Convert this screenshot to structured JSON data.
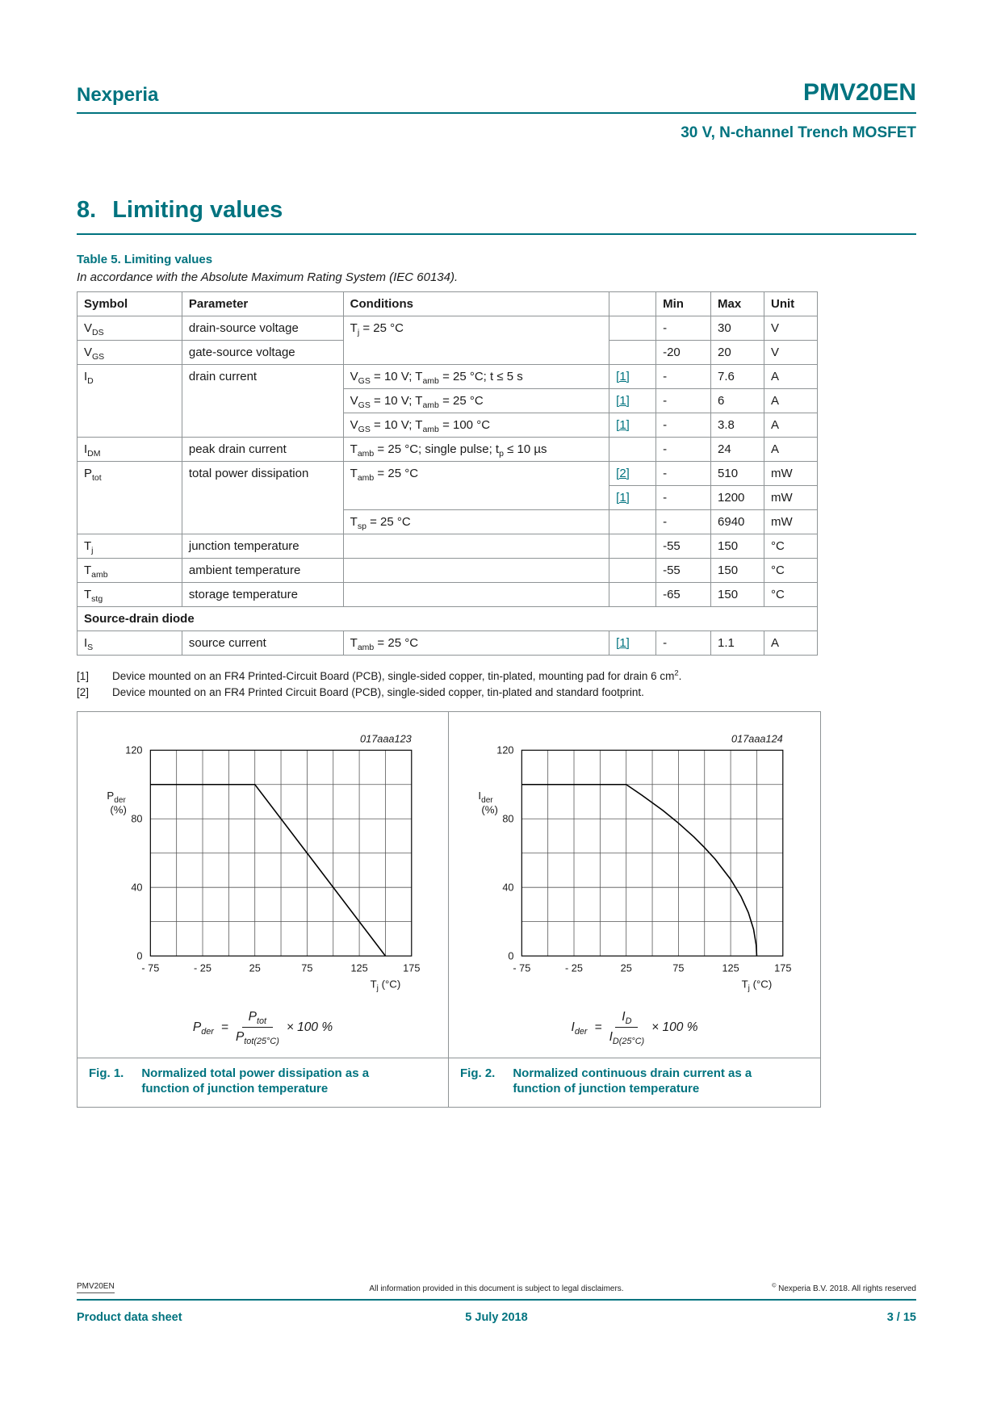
{
  "page": {
    "brand": "Nexperia",
    "part": "PMV20EN",
    "subtitle": "30 V, N-channel Trench MOSFET"
  },
  "section": {
    "number": "8.",
    "title": "Limiting values"
  },
  "table5": {
    "caption": "Table 5. Limiting values",
    "note": "In accordance with the Absolute Maximum Rating System (IEC 60134).",
    "headers": {
      "symbol": "Symbol",
      "parameter": "Parameter",
      "conditions": "Conditions",
      "ref": "",
      "min": "Min",
      "max": "Max",
      "unit": "Unit"
    },
    "section_row": "Source-drain diode",
    "rows": [
      {
        "symbol": "V~DS~",
        "parameter": "drain-source voltage",
        "conditions": "T~j~ = 25 °C",
        "ref": "",
        "min": "-",
        "max": "30",
        "unit": "V"
      },
      {
        "symbol": "V~GS~",
        "parameter": "gate-source voltage",
        "ref": "",
        "min": "-20",
        "max": "20",
        "unit": "V"
      },
      {
        "symbol": "I~D~",
        "parameter": "drain current",
        "conditions": "V~GS~ = 10 V; T~amb~ = 25 °C; t ≤ 5 s",
        "ref": "[1]",
        "min": "-",
        "max": "7.6",
        "unit": "A"
      },
      {
        "conditions": "V~GS~ = 10 V; T~amb~ = 25 °C",
        "ref": "[1]",
        "min": "-",
        "max": "6",
        "unit": "A"
      },
      {
        "conditions": "V~GS~ = 10 V; T~amb~ = 100 °C",
        "ref": "[1]",
        "min": "-",
        "max": "3.8",
        "unit": "A"
      },
      {
        "symbol": "I~DM~",
        "parameter": "peak drain current",
        "conditions": "T~amb~ = 25 °C; single pulse; t~p~ ≤  10 µs",
        "ref": "",
        "min": "-",
        "max": "24",
        "unit": "A"
      },
      {
        "symbol": "P~tot~",
        "parameter": "total power dissipation",
        "conditions": "T~amb~ = 25 °C",
        "ref": "[2]",
        "min": "-",
        "max": "510",
        "unit": "mW"
      },
      {
        "ref": "[1]",
        "min": "-",
        "max": "1200",
        "unit": "mW"
      },
      {
        "conditions": "T~sp~ = 25 °C",
        "ref": "",
        "min": "-",
        "max": "6940",
        "unit": "mW"
      },
      {
        "symbol": "T~j~",
        "parameter": "junction temperature",
        "conditions": "",
        "ref": "",
        "min": "-55",
        "max": "150",
        "unit": "°C"
      },
      {
        "symbol": "T~amb~",
        "parameter": "ambient temperature",
        "conditions": "",
        "ref": "",
        "min": "-55",
        "max": "150",
        "unit": "°C"
      },
      {
        "symbol": "T~stg~",
        "parameter": "storage temperature",
        "conditions": "",
        "ref": "",
        "min": "-65",
        "max": "150",
        "unit": "°C"
      },
      {
        "symbol": "I~S~",
        "parameter": "source current",
        "conditions": "T~amb~ = 25 °C",
        "ref": "[1]",
        "min": "-",
        "max": "1.1",
        "unit": "A"
      }
    ]
  },
  "footnotes": [
    {
      "ref": "[1]",
      "text": "Device mounted on an FR4 Printed-Circuit Board (PCB), single-sided copper, tin-plated, mounting pad for drain 6 cm^2^."
    },
    {
      "ref": "[2]",
      "text": "Device mounted on an FR4 Printed Circuit Board (PCB), single-sided copper, tin-plated and standard footprint."
    }
  ],
  "figures": {
    "fig1": {
      "label": "Fig. 1.",
      "caption": "Normalized total power dissipation as a function of junction temperature",
      "formula_lhs": "P~der~",
      "formula_eq": "=",
      "formula_num": "P~tot~",
      "formula_den": "P~tot(25°C)~",
      "formula_suffix": "× 100  %"
    },
    "fig2": {
      "label": "Fig. 2.",
      "caption": "Normalized continuous drain current as a function of junction temperature",
      "formula_lhs": "I~der~",
      "formula_eq": "=",
      "formula_num": "I~D~",
      "formula_den": "I~D(25°C)~",
      "formula_suffix": "× 100  %"
    }
  },
  "chart_data": [
    {
      "type": "line",
      "plot_id": "017aaa123",
      "ylabel_line1": "P~der~",
      "ylabel_line2": "(%)",
      "xlabel": "T~j~ (°C)",
      "xlim": [
        -75,
        175
      ],
      "ylim": [
        0,
        120
      ],
      "x_grid_step": 25,
      "y_grid_step": 20,
      "xticks": [
        -75,
        -25,
        25,
        75,
        125,
        175
      ],
      "xtick_labels": [
        "- 75",
        "- 25",
        "25",
        "75",
        "125",
        "175"
      ],
      "yticks": [
        0,
        40,
        80,
        120
      ],
      "series": [
        {
          "name": "P_der (%)",
          "points": [
            [
              -75,
              100
            ],
            [
              25,
              100
            ],
            [
              150,
              0
            ]
          ]
        }
      ]
    },
    {
      "type": "line",
      "plot_id": "017aaa124",
      "ylabel_line1": "I~der~",
      "ylabel_line2": "(%)",
      "xlabel": "T~j~ (°C)",
      "xlim": [
        -75,
        175
      ],
      "ylim": [
        0,
        120
      ],
      "x_grid_step": 25,
      "y_grid_step": 20,
      "xticks": [
        -75,
        -25,
        25,
        75,
        125,
        175
      ],
      "xtick_labels": [
        "- 75",
        "- 25",
        "25",
        "75",
        "125",
        "175"
      ],
      "yticks": [
        0,
        40,
        80,
        120
      ],
      "series": [
        {
          "name": "I_der (%)",
          "points": [
            [
              -75,
              100
            ],
            [
              25,
              100
            ],
            [
              40,
              93.8
            ],
            [
              60,
              84.9
            ],
            [
              75,
              77.5
            ],
            [
              90,
              69.3
            ],
            [
              100,
              63.2
            ],
            [
              110,
              56.6
            ],
            [
              125,
              44.7
            ],
            [
              135,
              34.6
            ],
            [
              142,
              25.3
            ],
            [
              147,
              15.5
            ],
            [
              149.5,
              6.3
            ],
            [
              150,
              0
            ]
          ]
        }
      ]
    }
  ],
  "footer": {
    "doc_id": "PMV20EN",
    "disclaimer": "All information provided in this document is subject to legal disclaimers.",
    "copyright": "^©^ Nexperia B.V. 2018. All rights reserved",
    "doc_type": "Product data sheet",
    "date": "5 July 2018",
    "page_info": "3 / 15"
  }
}
